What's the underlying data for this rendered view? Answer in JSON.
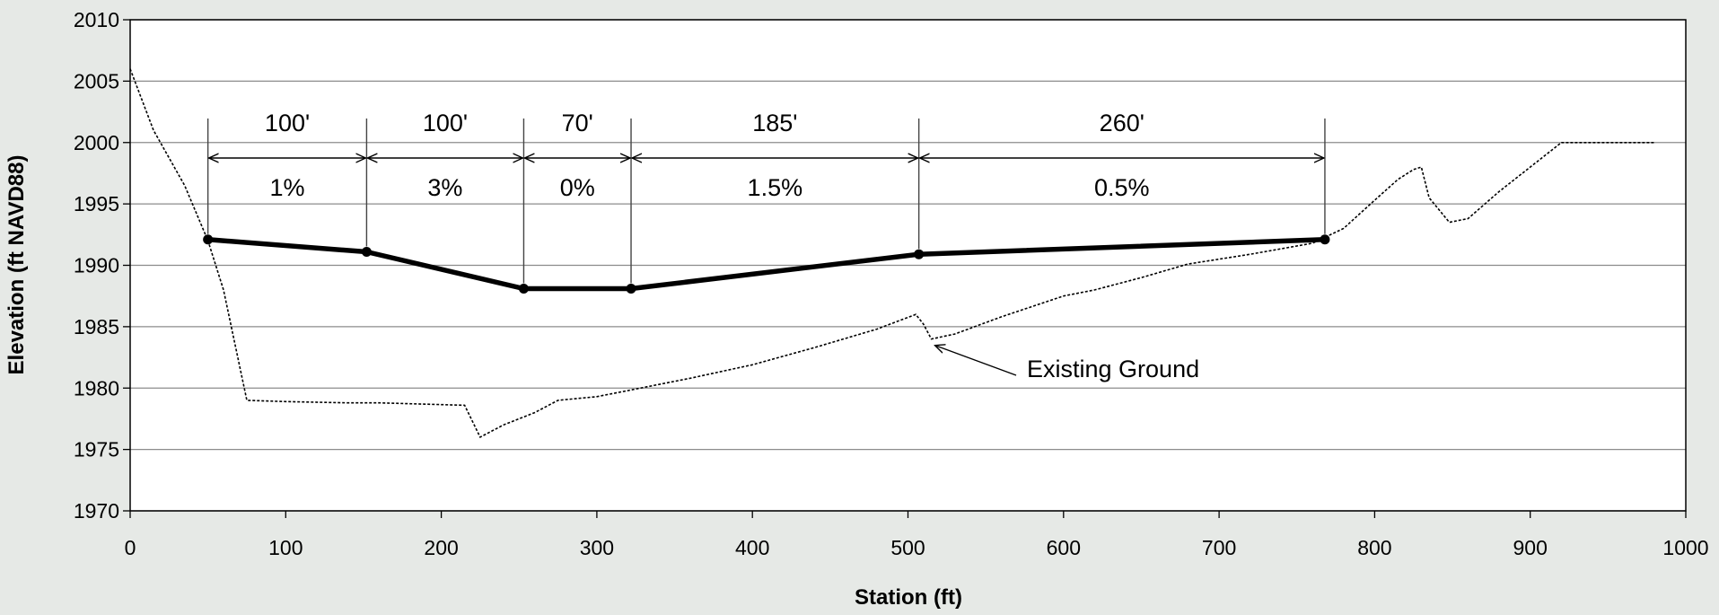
{
  "chart_data": {
    "type": "line",
    "title": "",
    "xlabel": "Station (ft)",
    "ylabel": "Elevation (ft NAVD88)",
    "xlim": [
      0,
      1000
    ],
    "ylim": [
      1970,
      2010
    ],
    "xticks": [
      0,
      100,
      200,
      300,
      400,
      500,
      600,
      700,
      800,
      900,
      1000
    ],
    "yticks": [
      1970,
      1975,
      1980,
      1985,
      1990,
      1995,
      2000,
      2005,
      2010
    ],
    "grid": "horizontal",
    "legend": "none",
    "series": [
      {
        "role": "proposed",
        "color": "#000000",
        "style": "solid-thick-with-markers",
        "x": [
          50,
          152,
          253,
          322,
          507,
          768
        ],
        "y": [
          1992.1,
          1991.1,
          1988.1,
          1988.1,
          1990.9,
          1992.1
        ]
      },
      {
        "role": "existing-ground",
        "color": "#000000",
        "style": "dotted",
        "x": [
          0,
          15,
          35,
          50,
          60,
          75,
          100,
          140,
          160,
          215,
          225,
          240,
          260,
          275,
          300,
          320,
          360,
          400,
          440,
          480,
          505,
          510,
          515,
          530,
          560,
          600,
          620,
          650,
          680,
          720,
          760,
          780,
          800,
          815,
          825,
          830,
          835,
          848,
          860,
          880,
          900,
          920,
          950,
          980
        ],
        "y": [
          2006,
          2001,
          1996.5,
          1992,
          1988,
          1979,
          1978.9,
          1978.8,
          1978.8,
          1978.6,
          1976,
          1977,
          1978,
          1979,
          1979.3,
          1979.8,
          1980.8,
          1981.9,
          1983.3,
          1984.8,
          1986,
          1985.2,
          1984,
          1984.4,
          1985.8,
          1987.5,
          1988,
          1989,
          1990.1,
          1990.9,
          1991.8,
          1993,
          1995.3,
          1997,
          1997.8,
          1998,
          1995.5,
          1993.5,
          1993.8,
          1996,
          1998,
          2000,
          2000,
          2000
        ]
      }
    ],
    "dimensions": [
      {
        "x1": 50,
        "x2": 152,
        "length": "100'",
        "slope": "1%"
      },
      {
        "x1": 152,
        "x2": 253,
        "length": "100'",
        "slope": "3%"
      },
      {
        "x1": 253,
        "x2": 322,
        "length": "70'",
        "slope": "0%"
      },
      {
        "x1": 322,
        "x2": 507,
        "length": "185'",
        "slope": "1.5%"
      },
      {
        "x1": 507,
        "x2": 768,
        "length": "260'",
        "slope": "0.5%"
      }
    ],
    "annotation": {
      "text": "Existing Ground",
      "target_x": 515,
      "target_y": 1983.7
    }
  }
}
